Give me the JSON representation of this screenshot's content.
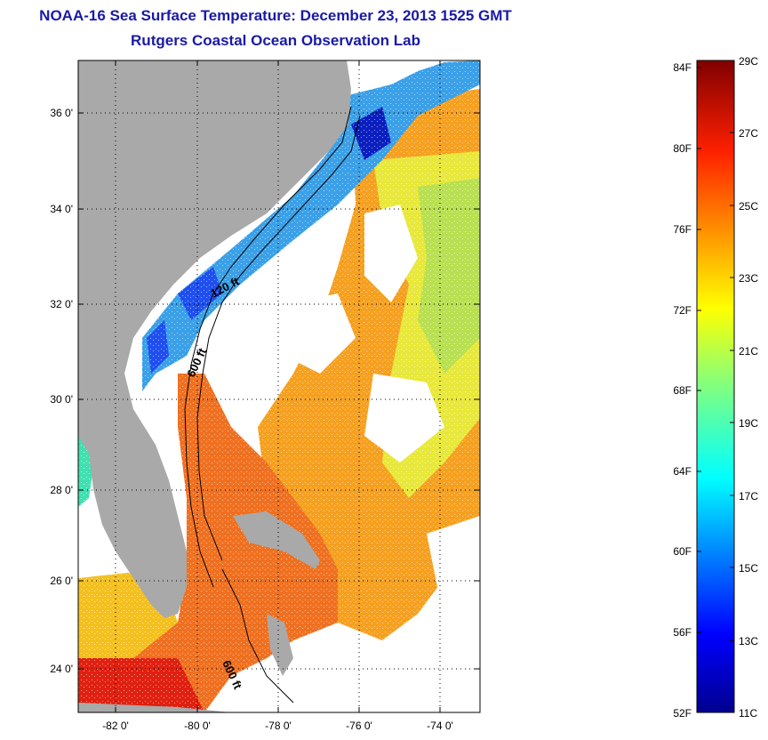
{
  "header": {
    "title": "NOAA-16 Sea Surface Temperature:  December 23, 2013 1525 GMT",
    "subtitle": "Rutgers Coastal Ocean Observation Lab"
  },
  "map": {
    "lat_ticks": [
      "36 0'",
      "34 0'",
      "32 0'",
      "30 0'",
      "28 0'",
      "26 0'",
      "24 0'"
    ],
    "lon_ticks": [
      "-82 0'",
      "-80 0'",
      "-78 0'",
      "-76 0'",
      "-74 0'"
    ],
    "contour_labels": [
      "120 ft",
      "600 ft",
      "600 ft"
    ],
    "colors": {
      "land": "#a9a9a9",
      "cloud": "#ffffff"
    }
  },
  "colorbar": {
    "fahrenheit": [
      "84F",
      "80F",
      "76F",
      "72F",
      "68F",
      "64F",
      "60F",
      "56F",
      "52F"
    ],
    "celsius": [
      "29C",
      "27C",
      "25C",
      "23C",
      "21C",
      "19C",
      "17C",
      "15C",
      "13C",
      "11C"
    ],
    "range_c": [
      11,
      29
    ]
  }
}
